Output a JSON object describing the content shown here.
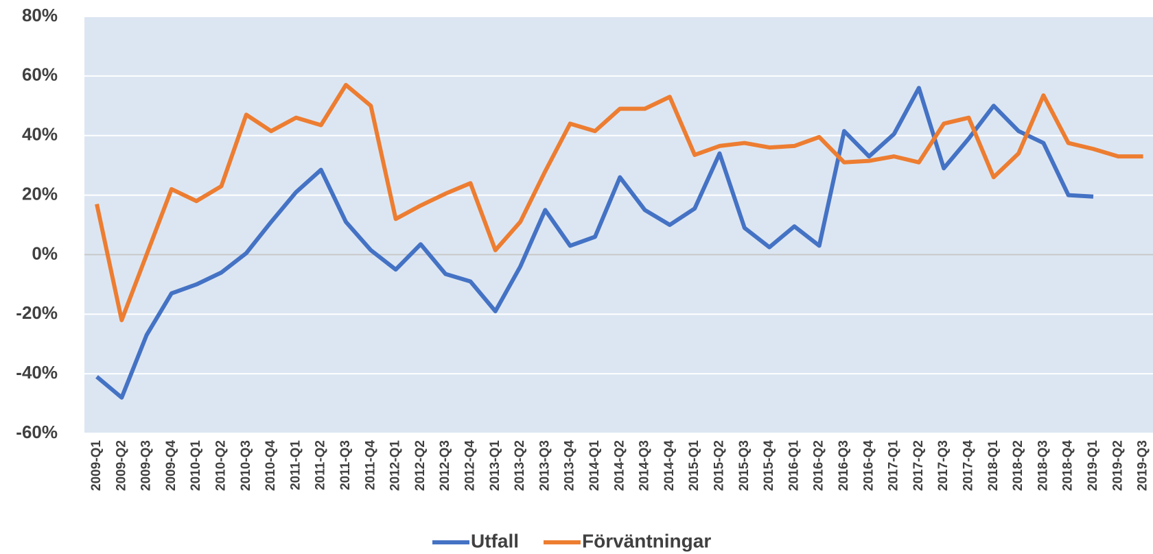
{
  "chart_data": {
    "type": "line",
    "categories": [
      "2009-Q1",
      "2009-Q2",
      "2009-Q3",
      "2009-Q4",
      "2010-Q1",
      "2010-Q2",
      "2010-Q3",
      "2010-Q4",
      "2011-Q1",
      "2011-Q2",
      "2011-Q3",
      "2011-Q4",
      "2012-Q1",
      "2012-Q2",
      "2012-Q3",
      "2012-Q4",
      "2013-Q1",
      "2013-Q2",
      "2013-Q3",
      "2013-Q4",
      "2014-Q1",
      "2014-Q2",
      "2014-Q3",
      "2014-Q4",
      "2015-Q1",
      "2015-Q2",
      "2015-Q3",
      "2015-Q4",
      "2016-Q1",
      "2016-Q2",
      "2016-Q3",
      "2016-Q4",
      "2017-Q1",
      "2017-Q2",
      "2017-Q3",
      "2017-Q4",
      "2018-Q1",
      "2018-Q2",
      "2018-Q3",
      "2018-Q4",
      "2019-Q1",
      "2019-Q2",
      "2019-Q3"
    ],
    "series": [
      {
        "name": "Utfall",
        "color": "#4472c4",
        "values": [
          -41,
          -48,
          -27,
          -13,
          -10,
          -6,
          0.5,
          11,
          21,
          28.5,
          11,
          1.5,
          -5,
          3.5,
          -6.5,
          -9,
          -19,
          -4,
          15,
          3,
          6,
          26,
          15,
          10,
          15.5,
          34,
          9,
          2.5,
          9.5,
          3,
          41.5,
          33,
          40.5,
          56,
          29,
          39,
          50,
          41.5,
          37.5,
          20,
          19.5,
          null,
          null
        ]
      },
      {
        "name": "Förväntningar",
        "color": "#ed7d31",
        "values": [
          17,
          -22,
          0,
          22,
          18,
          23,
          47,
          41.5,
          46,
          43.5,
          57,
          50,
          12,
          16.5,
          20.5,
          24,
          1.5,
          11,
          28,
          44,
          41.5,
          49,
          49,
          53,
          33.5,
          36.5,
          37.5,
          36,
          36.5,
          39.5,
          31,
          31.5,
          33,
          31,
          44,
          46,
          26,
          34,
          53.5,
          37.5,
          35.5,
          33,
          33
        ]
      }
    ],
    "ylim": [
      -60,
      80
    ],
    "yticks": [
      {
        "value": -60,
        "label": "-60%"
      },
      {
        "value": -40,
        "label": "-40%"
      },
      {
        "value": -20,
        "label": "-20%"
      },
      {
        "value": 0,
        "label": "0%"
      },
      {
        "value": 20,
        "label": "20%"
      },
      {
        "value": 40,
        "label": "40%"
      },
      {
        "value": 60,
        "label": "60%"
      },
      {
        "value": 80,
        "label": "80%"
      }
    ],
    "grid": true,
    "legend": "bottom",
    "background": "#dce6f2"
  }
}
